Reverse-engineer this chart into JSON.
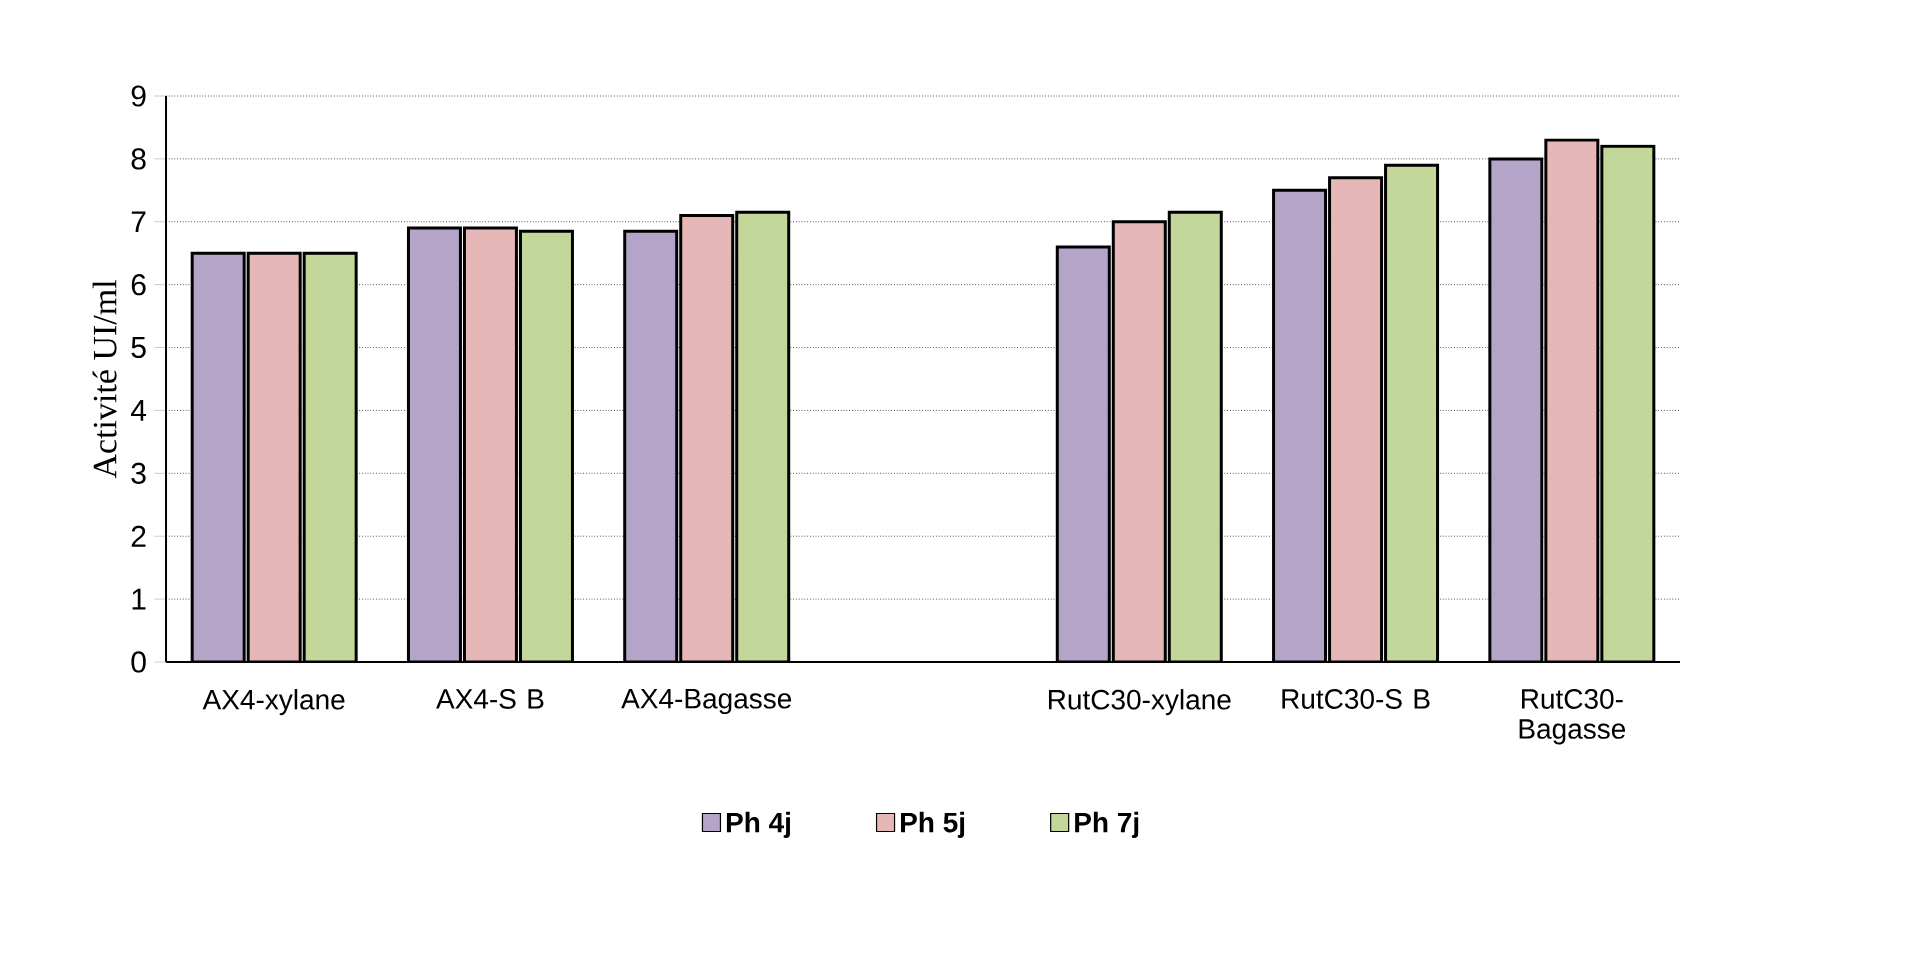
{
  "chart_data": {
    "type": "bar",
    "ylabel": "Activité UI/ml",
    "categories": [
      "AX4-xylane",
      "AX4-S B",
      "AX4-Bagasse",
      null,
      "RutC30-xylane",
      "RutC30-S B",
      "RutC30-Bagasse"
    ],
    "series": [
      {
        "name": "Ph 4j",
        "color": "#b3a4c8",
        "values": [
          6.5,
          6.9,
          6.85,
          null,
          6.6,
          7.5,
          8.0
        ]
      },
      {
        "name": "Ph 5j",
        "color": "#e5b8b7",
        "values": [
          6.5,
          6.9,
          7.1,
          null,
          7.0,
          7.7,
          8.3
        ]
      },
      {
        "name": "Ph 7j",
        "color": "#c4d79b",
        "values": [
          6.5,
          6.85,
          7.15,
          null,
          7.15,
          7.9,
          8.2
        ]
      }
    ],
    "ylim": [
      0,
      9
    ],
    "yticks": [
      0,
      1,
      2,
      3,
      4,
      5,
      6,
      7,
      8,
      9
    ],
    "grid": "y",
    "legend": "bottom"
  }
}
